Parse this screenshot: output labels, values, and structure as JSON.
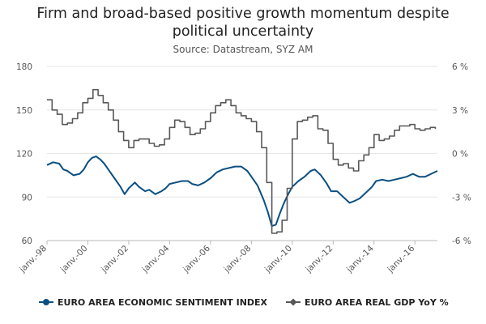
{
  "chart_data": {
    "type": "line",
    "title_lines": [
      "Firm and broad-based positive growth momentum despite",
      "political uncertainty"
    ],
    "subtitle": "Source: Datastream, SYZ AM",
    "x_ticks": [
      "janv.-98",
      "janv.-00",
      "janv.-02",
      "janv.-04",
      "janv.-06",
      "janv.-08",
      "janv.-10",
      "janv.-12",
      "janv.-14",
      "janv.-16"
    ],
    "x_range": [
      1998.0,
      2017.1
    ],
    "y_left": {
      "ticks": [
        "60",
        "90",
        "120",
        "150",
        "180"
      ],
      "range": [
        60,
        180
      ]
    },
    "y_right": {
      "ticks": [
        "-6 %",
        "-3 %",
        "0 %",
        "3 %",
        "6 %"
      ],
      "range": [
        -6,
        6
      ]
    },
    "grid": "horizontal",
    "legend_position": "bottom",
    "series": [
      {
        "name": "EURO AREA ECONOMIC SENTIMENT INDEX",
        "axis": "left",
        "color": "#0b4f82",
        "marker": "circle",
        "points": [
          [
            1998.0,
            112
          ],
          [
            1998.3,
            114
          ],
          [
            1998.6,
            113
          ],
          [
            1998.8,
            109
          ],
          [
            1999.0,
            108
          ],
          [
            1999.3,
            105
          ],
          [
            1999.6,
            106
          ],
          [
            1999.8,
            109
          ],
          [
            2000.0,
            114
          ],
          [
            2000.2,
            117
          ],
          [
            2000.4,
            118
          ],
          [
            2000.6,
            116
          ],
          [
            2000.8,
            113
          ],
          [
            2001.0,
            109
          ],
          [
            2001.3,
            103
          ],
          [
            2001.6,
            97
          ],
          [
            2001.8,
            92
          ],
          [
            2002.0,
            96
          ],
          [
            2002.3,
            100
          ],
          [
            2002.5,
            97
          ],
          [
            2002.8,
            94
          ],
          [
            2003.0,
            95
          ],
          [
            2003.3,
            92
          ],
          [
            2003.6,
            94
          ],
          [
            2003.8,
            96
          ],
          [
            2004.0,
            99
          ],
          [
            2004.3,
            100
          ],
          [
            2004.6,
            101
          ],
          [
            2004.9,
            101
          ],
          [
            2005.1,
            99
          ],
          [
            2005.4,
            98
          ],
          [
            2005.7,
            100
          ],
          [
            2006.0,
            103
          ],
          [
            2006.3,
            107
          ],
          [
            2006.6,
            109
          ],
          [
            2006.9,
            110
          ],
          [
            2007.2,
            111
          ],
          [
            2007.5,
            111
          ],
          [
            2007.8,
            108
          ],
          [
            2008.0,
            104
          ],
          [
            2008.3,
            98
          ],
          [
            2008.6,
            88
          ],
          [
            2008.8,
            80
          ],
          [
            2009.0,
            70
          ],
          [
            2009.2,
            71
          ],
          [
            2009.4,
            79
          ],
          [
            2009.6,
            86
          ],
          [
            2009.8,
            92
          ],
          [
            2010.0,
            97
          ],
          [
            2010.3,
            101
          ],
          [
            2010.6,
            104
          ],
          [
            2010.9,
            108
          ],
          [
            2011.1,
            109
          ],
          [
            2011.4,
            105
          ],
          [
            2011.7,
            99
          ],
          [
            2011.9,
            94
          ],
          [
            2012.2,
            94
          ],
          [
            2012.5,
            90
          ],
          [
            2012.8,
            86
          ],
          [
            2013.0,
            87
          ],
          [
            2013.3,
            89
          ],
          [
            2013.6,
            93
          ],
          [
            2013.9,
            97
          ],
          [
            2014.1,
            101
          ],
          [
            2014.4,
            102
          ],
          [
            2014.7,
            101
          ],
          [
            2015.0,
            102
          ],
          [
            2015.3,
            103
          ],
          [
            2015.6,
            104
          ],
          [
            2015.9,
            106
          ],
          [
            2016.2,
            104
          ],
          [
            2016.5,
            104
          ],
          [
            2016.8,
            106
          ],
          [
            2017.1,
            108
          ]
        ]
      },
      {
        "name": "EURO AREA REAL GDP YoY %",
        "axis": "right",
        "color": "#585858",
        "marker": "diamond",
        "points": [
          [
            1998.0,
            3.7
          ],
          [
            1998.25,
            3.0
          ],
          [
            1998.5,
            2.7
          ],
          [
            1998.75,
            2.0
          ],
          [
            1999.0,
            2.1
          ],
          [
            1999.25,
            2.4
          ],
          [
            1999.5,
            2.8
          ],
          [
            1999.75,
            3.5
          ],
          [
            2000.0,
            3.8
          ],
          [
            2000.25,
            4.4
          ],
          [
            2000.5,
            4.0
          ],
          [
            2000.75,
            3.5
          ],
          [
            2001.0,
            3.0
          ],
          [
            2001.25,
            2.3
          ],
          [
            2001.5,
            1.5
          ],
          [
            2001.75,
            0.9
          ],
          [
            2002.0,
            0.4
          ],
          [
            2002.25,
            0.9
          ],
          [
            2002.5,
            1.0
          ],
          [
            2002.75,
            1.0
          ],
          [
            2003.0,
            0.7
          ],
          [
            2003.25,
            0.5
          ],
          [
            2003.5,
            0.6
          ],
          [
            2003.75,
            1.0
          ],
          [
            2004.0,
            1.8
          ],
          [
            2004.25,
            2.3
          ],
          [
            2004.5,
            2.2
          ],
          [
            2004.75,
            1.8
          ],
          [
            2005.0,
            1.3
          ],
          [
            2005.25,
            1.4
          ],
          [
            2005.5,
            1.7
          ],
          [
            2005.75,
            2.2
          ],
          [
            2006.0,
            2.8
          ],
          [
            2006.25,
            3.3
          ],
          [
            2006.5,
            3.5
          ],
          [
            2006.75,
            3.7
          ],
          [
            2007.0,
            3.3
          ],
          [
            2007.25,
            2.8
          ],
          [
            2007.5,
            2.6
          ],
          [
            2007.75,
            2.4
          ],
          [
            2008.0,
            2.2
          ],
          [
            2008.25,
            1.5
          ],
          [
            2008.5,
            0.4
          ],
          [
            2008.75,
            -2.0
          ],
          [
            2009.0,
            -5.5
          ],
          [
            2009.25,
            -5.4
          ],
          [
            2009.5,
            -4.6
          ],
          [
            2009.75,
            -2.4
          ],
          [
            2010.0,
            1.0
          ],
          [
            2010.25,
            2.2
          ],
          [
            2010.5,
            2.3
          ],
          [
            2010.75,
            2.5
          ],
          [
            2011.0,
            2.6
          ],
          [
            2011.25,
            1.7
          ],
          [
            2011.5,
            1.6
          ],
          [
            2011.75,
            0.7
          ],
          [
            2012.0,
            -0.4
          ],
          [
            2012.25,
            -0.8
          ],
          [
            2012.5,
            -0.7
          ],
          [
            2012.75,
            -1.0
          ],
          [
            2013.0,
            -1.2
          ],
          [
            2013.25,
            -0.5
          ],
          [
            2013.5,
            -0.1
          ],
          [
            2013.75,
            0.4
          ],
          [
            2014.0,
            1.3
          ],
          [
            2014.25,
            0.9
          ],
          [
            2014.5,
            1.0
          ],
          [
            2014.75,
            1.2
          ],
          [
            2015.0,
            1.6
          ],
          [
            2015.25,
            1.9
          ],
          [
            2015.5,
            1.9
          ],
          [
            2015.75,
            2.0
          ],
          [
            2016.0,
            1.7
          ],
          [
            2016.25,
            1.6
          ],
          [
            2016.5,
            1.7
          ],
          [
            2016.75,
            1.8
          ],
          [
            2017.0,
            1.7
          ]
        ]
      }
    ]
  }
}
